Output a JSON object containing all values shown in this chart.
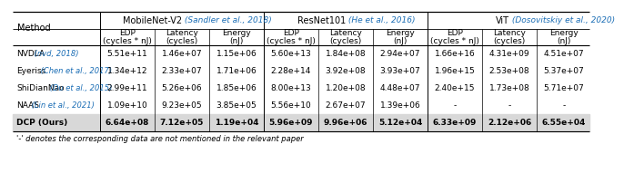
{
  "footnote": "'-' denotes the corresponding data are not mentioned in the relevant paper",
  "col_groups": [
    {
      "name": "MobileNet-V2",
      "cite": " (Sandler et al., 2018)",
      "cols": [
        "EDP\n(cycles * nJ)",
        "Latency\n(cycles)",
        "Energy\n(nJ)"
      ]
    },
    {
      "name": "ResNet101",
      "cite": " (He et al., 2016)",
      "cols": [
        "EDP\n(cycles * nJ)",
        "Latency\n(cycles)",
        "Energy\n(nJ)"
      ]
    },
    {
      "name": "ViT",
      "cite": " (Dosovitskiy et al., 2020)",
      "cols": [
        "EDP\n(cycles * nJ)",
        "Latency\n(cycles)",
        "Energy\n(nJ)"
      ]
    }
  ],
  "rows": [
    {
      "method": "NVDLA",
      "cite": " (nvd, 2018)",
      "bold": false,
      "values": [
        [
          "5.51e+11",
          "1.46e+07",
          "1.15e+06"
        ],
        [
          "5.60e+13",
          "1.84e+08",
          "2.94e+07"
        ],
        [
          "1.66e+16",
          "4.31e+09",
          "4.51e+07"
        ]
      ]
    },
    {
      "method": "Eyeriss",
      "cite": " (Chen et al., 2017)",
      "bold": false,
      "values": [
        [
          "1.34e+12",
          "2.33e+07",
          "1.71e+06"
        ],
        [
          "2.28e+14",
          "3.92e+08",
          "3.93e+07"
        ],
        [
          "1.96e+15",
          "2.53e+08",
          "5.37e+07"
        ]
      ]
    },
    {
      "method": "ShiDianNao",
      "cite": " (Du et al., 2015)",
      "bold": false,
      "values": [
        [
          "2.99e+11",
          "5.26e+06",
          "1.85e+06"
        ],
        [
          "8.00e+13",
          "1.20e+08",
          "4.48e+07"
        ],
        [
          "2.40e+15",
          "1.73e+08",
          "5.71e+07"
        ]
      ]
    },
    {
      "method": "NAAS",
      "cite": " (Lin et al., 2021)",
      "bold": false,
      "values": [
        [
          "1.09e+10",
          "9.23e+05",
          "3.85e+05"
        ],
        [
          "5.56e+10",
          "2.67e+07",
          "1.39e+06"
        ],
        [
          "-",
          "-",
          "-"
        ]
      ]
    },
    {
      "method": "DCP (Ours)",
      "cite": "",
      "bold": true,
      "values": [
        [
          "6.64e+08",
          "7.12e+05",
          "1.19e+04"
        ],
        [
          "5.96e+09",
          "9.96e+06",
          "5.12e+04"
        ],
        [
          "6.33e+09",
          "2.12e+06",
          "6.55e+04"
        ]
      ]
    }
  ],
  "header_color": "#000000",
  "cite_color": "#1a6db5",
  "bg_color": "#ffffff",
  "bold_row_bg": "#d8d8d8",
  "line_color": "#000000",
  "fontsize_group": 7.0,
  "fontsize_sub": 6.5,
  "fontsize_data": 6.5,
  "fontsize_method": 6.5,
  "fontsize_footnote": 6.0
}
